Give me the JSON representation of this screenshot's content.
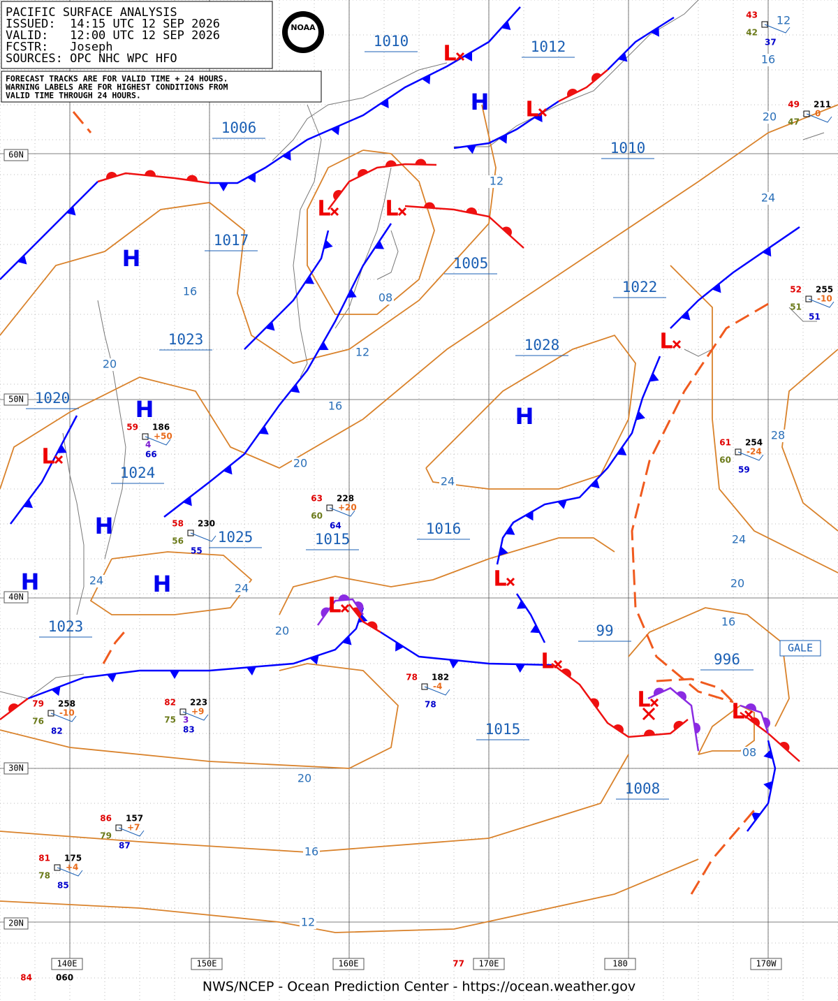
{
  "header": {
    "lines": [
      "PACIFIC SURFACE ANALYSIS",
      "ISSUED:  14:15 UTC 12 SEP 2026",
      "VALID:   12:00 UTC 12 SEP 2026",
      "FCSTR:   Joseph",
      "SOURCES: OPC NHC WPC HFO"
    ],
    "notes": [
      "FORECAST TRACKS ARE FOR VALID TIME + 24 HOURS.",
      "WARNING LABELS ARE FOR HIGHEST CONDITIONS FROM",
      "VALID TIME THROUGH 24 HOURS."
    ],
    "logo": "NOAA"
  },
  "pressure_labels": [
    "1010",
    "1012",
    "1006",
    "1010",
    "1017",
    "1005",
    "1022",
    "1023",
    "1028",
    "1020",
    "1024",
    "1025",
    "1015",
    "1016",
    "99",
    "996",
    "1023",
    "1015",
    "1008"
  ],
  "contour_labels": [
    "12",
    "16",
    "20",
    "24",
    "12",
    "16",
    "08",
    "12",
    "20",
    "16",
    "28",
    "20",
    "24",
    "24",
    "24",
    "24",
    "20",
    "16",
    "20",
    "08",
    "20",
    "16",
    "12"
  ],
  "highs": [
    "H",
    "H",
    "H",
    "H",
    "H",
    "H",
    "H"
  ],
  "lows": [
    "L",
    "L",
    "L",
    "L",
    "L",
    "L",
    "L",
    "L",
    "L",
    "L",
    "L"
  ],
  "warning": "GALE",
  "latitudes": [
    "60N",
    "50N",
    "40N",
    "30N",
    "20N"
  ],
  "longitudes": [
    "140E",
    "150E",
    "160E",
    "170E",
    "180",
    "170W"
  ],
  "stations": [
    {
      "air": "43",
      "dew": "42",
      "sea": "37"
    },
    {
      "air": "49",
      "pressure": "211",
      "tendency": "0",
      "dew": "47"
    },
    {
      "air": "52",
      "pressure": "255",
      "tendency": "-10",
      "dew": "51",
      "sea": "51"
    },
    {
      "air": "61",
      "pressure": "254",
      "tendency": "-24",
      "dew": "60",
      "sea": "59"
    },
    {
      "air": "59",
      "pressure": "186",
      "tendency": "+50",
      "vis": "4",
      "sea": "66"
    },
    {
      "air": "63",
      "pressure": "228",
      "tendency": "+20",
      "dew": "60",
      "sea": "64"
    },
    {
      "air": "58",
      "pressure": "230",
      "dew": "56",
      "sea": "55"
    },
    {
      "air": "78",
      "pressure": "182",
      "tendency": "-4",
      "sea": "78"
    },
    {
      "air": "79",
      "pressure": "258",
      "tendency": "-10",
      "dew": "76",
      "sea": "82"
    },
    {
      "air": "82",
      "pressure": "223",
      "tendency": "+9",
      "dew": "75",
      "vis": "3",
      "sea": "83"
    },
    {
      "air": "86",
      "pressure": "157",
      "tendency": "+7",
      "dew": "79",
      "sea": "87"
    },
    {
      "air": "81",
      "pressure": "175",
      "tendency": "+4",
      "dew": "78",
      "sea": "85"
    },
    {
      "air": "77"
    },
    {
      "air": "84",
      "pressure": "060"
    }
  ],
  "footer": "NWS/NCEP - Ocean Prediction Center - https://ocean.weather.gov"
}
